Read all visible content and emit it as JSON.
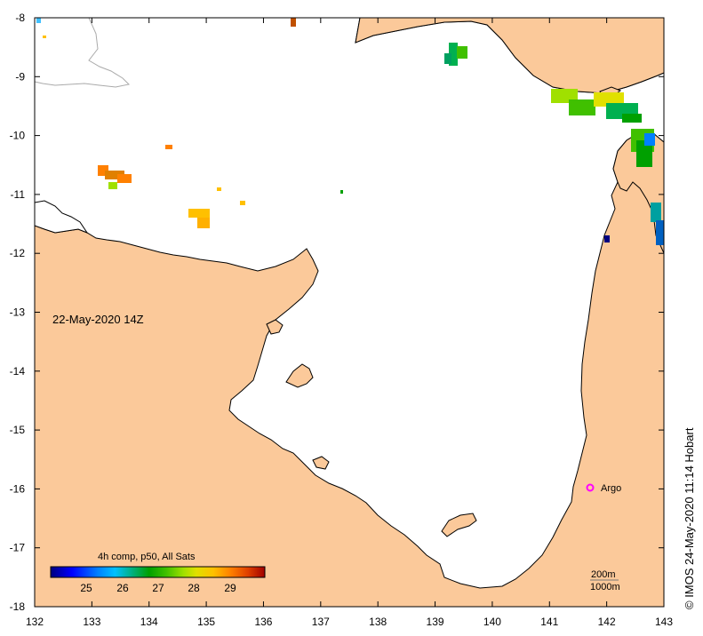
{
  "map": {
    "date_label": "22-May-2020 14Z",
    "credit": "© IMOS 24-May-2020 11:14 Hobart",
    "x_ticks": [
      "132",
      "133",
      "134",
      "135",
      "136",
      "137",
      "138",
      "139",
      "140",
      "141",
      "142",
      "143"
    ],
    "y_ticks": [
      "-8",
      "-9",
      "-10",
      "-11",
      "-12",
      "-13",
      "-14",
      "-15",
      "-16",
      "-17",
      "-18"
    ],
    "argo": {
      "label": "Argo",
      "lon": 141.7,
      "lat": -16.0,
      "color": "#ff00ff"
    },
    "contours": {
      "label_200": "200m",
      "label_1000": "1000m"
    },
    "colorbar": {
      "title": "4h comp, p50, All Sats",
      "ticks": [
        "25",
        "26",
        "27",
        "28",
        "29"
      ]
    },
    "colors": {
      "land": "#fbc99a",
      "sea": "#ffffff",
      "coast": "#000000",
      "bathymetry": "#aaaaaa",
      "colorbar_stops": [
        "#00007f",
        "#0000ff",
        "#0080ff",
        "#00c0ff",
        "#00b080",
        "#00a000",
        "#40c000",
        "#a0e000",
        "#e0e000",
        "#ffc000",
        "#ff8000",
        "#e04000",
        "#a00000"
      ]
    }
  }
}
